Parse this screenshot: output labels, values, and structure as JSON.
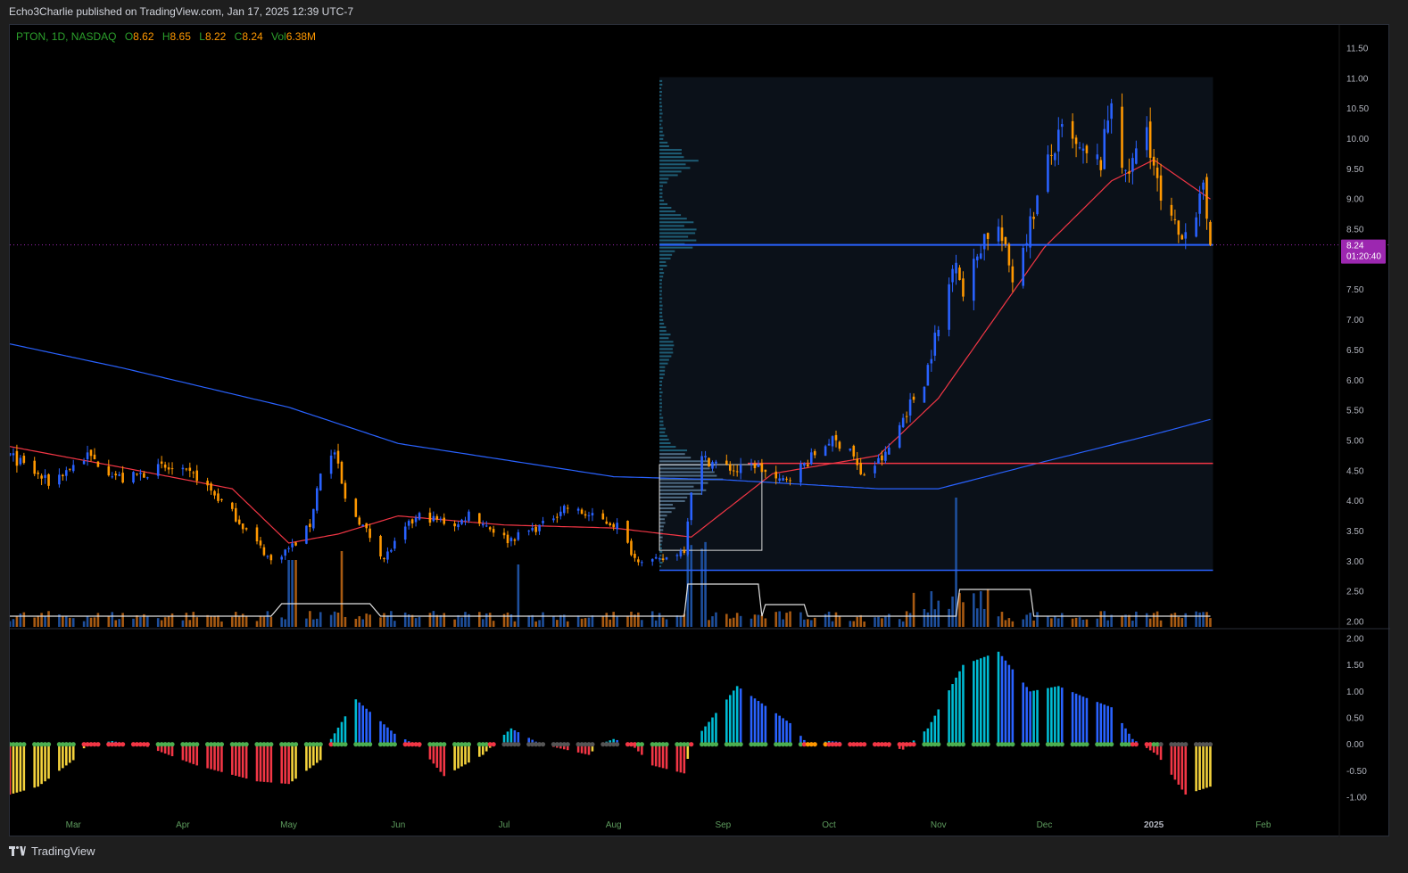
{
  "caption": "Echo3Charlie published on TradingView.com, Jan 17, 2025 12:39 UTC-7",
  "legend": {
    "symbol": "PTON, 1D, NASDAQ",
    "open_label": "O",
    "open": "8.62",
    "high_label": "H",
    "high": "8.65",
    "low_label": "L",
    "low": "8.22",
    "close_label": "C",
    "close": "8.24",
    "vol_label": "Vol",
    "vol": "6.38M"
  },
  "price_badge": {
    "price": "8.24",
    "countdown": "01:20:40",
    "color": "#9c27b0"
  },
  "footer": {
    "brand": "TradingView",
    "logo_icon": "tradingview-logo-icon"
  },
  "colors": {
    "up": "#2962ff",
    "down": "#ff9800",
    "ma_fast": "#f23645",
    "ma_slow": "#2962ff",
    "vol_up": "#1e4f9c",
    "vol_down": "#a85a12",
    "hline_blue": "#2962ff",
    "hline_red": "#f23645",
    "osc_red": "#f23645",
    "osc_yellow": "#f5d33c",
    "osc_cyan": "#00bcd4",
    "osc_blue": "#2962ff",
    "dot_green": "#4caf50",
    "dot_red": "#f23645",
    "dot_gray": "#555555",
    "dot_orange": "#ff9800"
  },
  "chart_data": [
    {
      "type": "candlestick",
      "title": "",
      "xlabel": "",
      "ylabel": "",
      "x_tick_labels": [
        "Mar",
        "Apr",
        "May",
        "Jun",
        "Jul",
        "Aug",
        "Sep",
        "Oct",
        "Nov",
        "Dec",
        "2025",
        "Feb"
      ],
      "y_tick_labels": [
        "11.50",
        "11.00",
        "10.50",
        "10.00",
        "9.50",
        "9.00",
        "8.50",
        "8.00",
        "7.50",
        "7.00",
        "6.50",
        "6.00",
        "5.50",
        "5.00",
        "4.50",
        "4.00",
        "3.50",
        "3.00",
        "2.50",
        "2.00"
      ],
      "ylim": [
        2.0,
        11.5
      ],
      "ohlc_anchors": [
        [
          "2024-02-12",
          4.75
        ],
        [
          "2024-02-23",
          4.3
        ],
        [
          "2024-03-05",
          4.75
        ],
        [
          "2024-03-15",
          4.35
        ],
        [
          "2024-03-26",
          4.55
        ],
        [
          "2024-04-05",
          4.4
        ],
        [
          "2024-04-15",
          3.8
        ],
        [
          "2024-04-22",
          3.3
        ],
        [
          "2024-04-26",
          3.0
        ],
        [
          "2024-05-03",
          3.3
        ],
        [
          "2024-05-07",
          3.6
        ],
        [
          "2024-05-10",
          4.5
        ],
        [
          "2024-05-14",
          4.8
        ],
        [
          "2024-05-17",
          4.0
        ],
        [
          "2024-05-23",
          3.5
        ],
        [
          "2024-05-28",
          3.05
        ],
        [
          "2024-06-04",
          3.6
        ],
        [
          "2024-06-07",
          3.75
        ],
        [
          "2024-06-18",
          3.6
        ],
        [
          "2024-06-21",
          3.8
        ],
        [
          "2024-07-02",
          3.35
        ],
        [
          "2024-07-12",
          3.6
        ],
        [
          "2024-07-18",
          3.9
        ],
        [
          "2024-07-30",
          3.65
        ],
        [
          "2024-08-02",
          3.6
        ],
        [
          "2024-08-07",
          3.05
        ],
        [
          "2024-08-14",
          3.0
        ],
        [
          "2024-08-21",
          3.2
        ],
        [
          "2024-08-23",
          4.2
        ],
        [
          "2024-08-26",
          4.7
        ],
        [
          "2024-09-05",
          4.5
        ],
        [
          "2024-09-10",
          4.6
        ],
        [
          "2024-09-17",
          4.3
        ],
        [
          "2024-09-24",
          4.6
        ],
        [
          "2024-10-01",
          5.0
        ],
        [
          "2024-10-07",
          4.9
        ],
        [
          "2024-10-10",
          4.4
        ],
        [
          "2024-10-17",
          4.75
        ],
        [
          "2024-10-23",
          5.5
        ],
        [
          "2024-10-28",
          6.0
        ],
        [
          "2024-10-31",
          6.7
        ],
        [
          "2024-11-01",
          6.8
        ],
        [
          "2024-11-06",
          8.1
        ],
        [
          "2024-11-08",
          7.4
        ],
        [
          "2024-11-14",
          8.4
        ],
        [
          "2024-11-18",
          8.5
        ],
        [
          "2024-11-22",
          7.7
        ],
        [
          "2024-11-27",
          8.6
        ],
        [
          "2024-12-02",
          9.6
        ],
        [
          "2024-12-06",
          10.1
        ],
        [
          "2024-12-12",
          9.7
        ],
        [
          "2024-12-17",
          9.6
        ],
        [
          "2024-12-20",
          10.7
        ],
        [
          "2024-12-24",
          9.3
        ],
        [
          "2024-12-30",
          10.2
        ],
        [
          "2025-01-03",
          8.9
        ],
        [
          "2025-01-08",
          8.4
        ],
        [
          "2025-01-13",
          8.8
        ],
        [
          "2025-01-15",
          9.1
        ],
        [
          "2025-01-17",
          8.24
        ]
      ],
      "last": {
        "open": 8.62,
        "high": 8.65,
        "low": 8.22,
        "close": 8.24
      },
      "horizontal_levels": [
        8.24,
        2.85,
        4.62
      ],
      "moving_averages": [
        {
          "name": "",
          "color": "#f23645",
          "points": [
            [
              "2024-02-12",
              4.9
            ],
            [
              "2024-03-15",
              4.55
            ],
            [
              "2024-04-15",
              4.2
            ],
            [
              "2024-05-01",
              3.3
            ],
            [
              "2024-05-15",
              3.45
            ],
            [
              "2024-06-01",
              3.75
            ],
            [
              "2024-07-01",
              3.6
            ],
            [
              "2024-08-01",
              3.55
            ],
            [
              "2024-08-23",
              3.4
            ],
            [
              "2024-09-15",
              4.45
            ],
            [
              "2024-10-15",
              4.75
            ],
            [
              "2024-11-01",
              5.7
            ],
            [
              "2024-12-01",
              8.2
            ],
            [
              "2024-12-20",
              9.3
            ],
            [
              "2025-01-01",
              9.65
            ],
            [
              "2025-01-17",
              9.0
            ]
          ]
        },
        {
          "name": "",
          "color": "#2962ff",
          "points": [
            [
              "2024-02-12",
              6.6
            ],
            [
              "2024-03-15",
              6.2
            ],
            [
              "2024-05-01",
              5.55
            ],
            [
              "2024-06-01",
              4.95
            ],
            [
              "2024-08-01",
              4.4
            ],
            [
              "2024-09-01",
              4.35
            ],
            [
              "2024-10-15",
              4.2
            ],
            [
              "2024-11-01",
              4.2
            ],
            [
              "2024-12-01",
              4.65
            ],
            [
              "2025-01-01",
              5.1
            ],
            [
              "2025-01-17",
              5.35
            ]
          ]
        }
      ],
      "volume_profile_range": [
        "2024-08-15",
        "2025-01-17"
      ]
    },
    {
      "type": "bar",
      "title": "",
      "xlabel": "",
      "ylabel": "",
      "y_tick_labels": [
        "2.00",
        "1.50",
        "1.00",
        "0.50",
        "0.00",
        "-0.50",
        "-1.00"
      ],
      "ylim": [
        -1.2,
        2.0
      ],
      "anchors": [
        [
          "2024-02-12",
          -0.95
        ],
        [
          "2024-02-20",
          -0.8
        ],
        [
          "2024-03-01",
          -0.3
        ],
        [
          "2024-03-05",
          0.0
        ],
        [
          "2024-03-12",
          0.06
        ],
        [
          "2024-03-22",
          -0.05
        ],
        [
          "2024-04-05",
          -0.4
        ],
        [
          "2024-04-22",
          -0.7
        ],
        [
          "2024-05-01",
          -0.75
        ],
        [
          "2024-05-10",
          -0.3
        ],
        [
          "2024-05-13",
          0.1
        ],
        [
          "2024-05-20",
          0.85
        ],
        [
          "2024-05-31",
          0.2
        ],
        [
          "2024-06-07",
          -0.05
        ],
        [
          "2024-06-14",
          -0.6
        ],
        [
          "2024-06-25",
          -0.2
        ],
        [
          "2024-06-28",
          0.0
        ],
        [
          "2024-07-03",
          0.3
        ],
        [
          "2024-07-10",
          0.05
        ],
        [
          "2024-07-15",
          -0.05
        ],
        [
          "2024-07-25",
          -0.2
        ],
        [
          "2024-07-28",
          0.0
        ],
        [
          "2024-08-01",
          0.1
        ],
        [
          "2024-08-06",
          0.0
        ],
        [
          "2024-08-12",
          -0.4
        ],
        [
          "2024-08-21",
          -0.55
        ],
        [
          "2024-08-23",
          0.0
        ],
        [
          "2024-09-05",
          1.1
        ],
        [
          "2024-09-20",
          0.4
        ],
        [
          "2024-09-25",
          0.0
        ],
        [
          "2024-10-01",
          0.06
        ],
        [
          "2024-10-14",
          0.0
        ],
        [
          "2024-10-22",
          -0.1
        ],
        [
          "2024-10-29",
          0.3
        ],
        [
          "2024-11-08",
          1.5
        ],
        [
          "2024-11-18",
          1.75
        ],
        [
          "2024-11-27",
          1.0
        ],
        [
          "2024-12-05",
          1.1
        ],
        [
          "2024-12-12",
          0.9
        ],
        [
          "2024-12-20",
          0.7
        ],
        [
          "2024-12-26",
          0.1
        ],
        [
          "2025-01-02",
          -0.2
        ],
        [
          "2025-01-10",
          -0.95
        ],
        [
          "2025-01-17",
          -0.8
        ]
      ]
    }
  ]
}
